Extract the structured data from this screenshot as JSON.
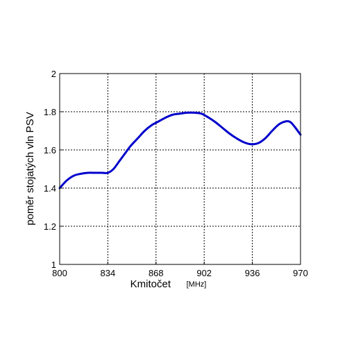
{
  "chart_data": {
    "type": "line",
    "xlabel": "Kmitočet",
    "xunit": "[MHz]",
    "ylabel": "poměr stojatých vln PSV",
    "xlim": [
      800,
      970
    ],
    "ylim": [
      1,
      2
    ],
    "xticks": [
      800,
      834,
      868,
      902,
      936,
      970
    ],
    "yticks": [
      1,
      1.2,
      1.4,
      1.6,
      1.8,
      2
    ],
    "grid": true,
    "series": [
      {
        "color": "#0000cc",
        "x": [
          800,
          805,
          810,
          815,
          820,
          825,
          830,
          834,
          838,
          842,
          846,
          850,
          855,
          860,
          865,
          870,
          875,
          880,
          885,
          890,
          895,
          900,
          905,
          910,
          915,
          920,
          925,
          930,
          935,
          940,
          945,
          950,
          955,
          960,
          963,
          966,
          970
        ],
        "y": [
          1.4,
          1.44,
          1.465,
          1.475,
          1.48,
          1.48,
          1.48,
          1.48,
          1.5,
          1.54,
          1.58,
          1.62,
          1.66,
          1.7,
          1.73,
          1.75,
          1.77,
          1.785,
          1.79,
          1.795,
          1.795,
          1.79,
          1.77,
          1.745,
          1.715,
          1.685,
          1.66,
          1.64,
          1.63,
          1.635,
          1.66,
          1.7,
          1.735,
          1.75,
          1.745,
          1.72,
          1.68
        ]
      }
    ]
  }
}
